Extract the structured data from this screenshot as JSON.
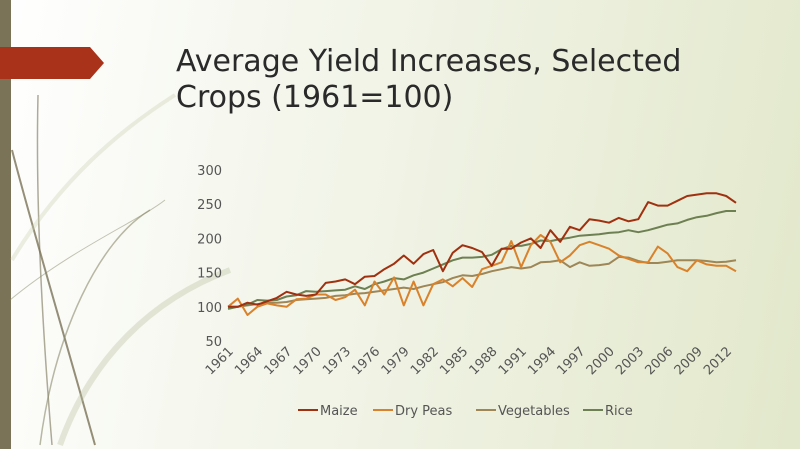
{
  "slide": {
    "title_line1": "Average Yield Increases, Selected",
    "title_line2": "Crops (1961=100)"
  },
  "colors": {
    "accent_arrow": "#a9321a",
    "left_bar": "#7a7357",
    "Maize": "#a0300f",
    "Dry Peas": "#d9822b",
    "Vegetables": "#9e8656",
    "Rice": "#6e7f52"
  },
  "chart_data": {
    "type": "line",
    "title": "",
    "xlabel": "",
    "ylabel": "",
    "ylim": [
      50,
      300
    ],
    "yticks": [
      50,
      100,
      150,
      200,
      250,
      300
    ],
    "xtick_labels": [
      "1961",
      "1964",
      "1967",
      "1970",
      "1973",
      "1976",
      "1979",
      "1982",
      "1985",
      "1988",
      "1991",
      "1994",
      "1997",
      "2000",
      "2003",
      "2006",
      "2009",
      "2012"
    ],
    "x": [
      1961,
      1962,
      1963,
      1964,
      1965,
      1966,
      1967,
      1968,
      1969,
      1970,
      1971,
      1972,
      1973,
      1974,
      1975,
      1976,
      1977,
      1978,
      1979,
      1980,
      1981,
      1982,
      1983,
      1984,
      1985,
      1986,
      1987,
      1988,
      1989,
      1990,
      1991,
      1992,
      1993,
      1994,
      1995,
      1996,
      1997,
      1998,
      1999,
      2000,
      2001,
      2002,
      2003,
      2004,
      2005,
      2006,
      2007,
      2008,
      2009,
      2010,
      2011,
      2012,
      2013
    ],
    "legend_position": "bottom",
    "grid": false,
    "series": [
      {
        "name": "Maize",
        "values": [
          100,
          100,
          106,
          103,
          108,
          113,
          122,
          118,
          116,
          118,
          135,
          137,
          140,
          133,
          144,
          145,
          155,
          163,
          175,
          163,
          177,
          183,
          152,
          179,
          190,
          186,
          180,
          160,
          185,
          185,
          194,
          200,
          186,
          212,
          195,
          217,
          212,
          228,
          226,
          223,
          230,
          225,
          228,
          253,
          248,
          248,
          255,
          262,
          264,
          266,
          266,
          262,
          252
        ]
      },
      {
        "name": "Dry Peas",
        "values": [
          100,
          112,
          88,
          100,
          105,
          102,
          100,
          111,
          112,
          118,
          118,
          110,
          114,
          125,
          102,
          137,
          118,
          143,
          102,
          137,
          102,
          133,
          140,
          130,
          142,
          129,
          155,
          160,
          165,
          196,
          158,
          190,
          205,
          195,
          165,
          175,
          190,
          195,
          190,
          185,
          175,
          170,
          165,
          165,
          188,
          178,
          158,
          152,
          168,
          162,
          160,
          160,
          152
        ]
      },
      {
        "name": "Vegetables",
        "values": [
          100,
          100,
          102,
          104,
          106,
          106,
          107,
          110,
          111,
          112,
          113,
          116,
          117,
          119,
          120,
          122,
          124,
          126,
          128,
          126,
          130,
          133,
          136,
          142,
          146,
          145,
          148,
          152,
          155,
          158,
          156,
          158,
          165,
          166,
          168,
          158,
          165,
          160,
          161,
          163,
          173,
          172,
          167,
          164,
          164,
          166,
          168,
          168,
          168,
          167,
          165,
          166,
          168
        ]
      },
      {
        "name": "Rice",
        "values": [
          97,
          100,
          103,
          110,
          109,
          110,
          115,
          117,
          123,
          122,
          123,
          124,
          125,
          130,
          126,
          133,
          137,
          142,
          140,
          146,
          150,
          156,
          162,
          168,
          172,
          172,
          173,
          176,
          184,
          189,
          189,
          192,
          197,
          196,
          199,
          201,
          204,
          205,
          206,
          208,
          209,
          212,
          209,
          212,
          216,
          220,
          222,
          227,
          231,
          233,
          237,
          240,
          240
        ]
      }
    ]
  }
}
